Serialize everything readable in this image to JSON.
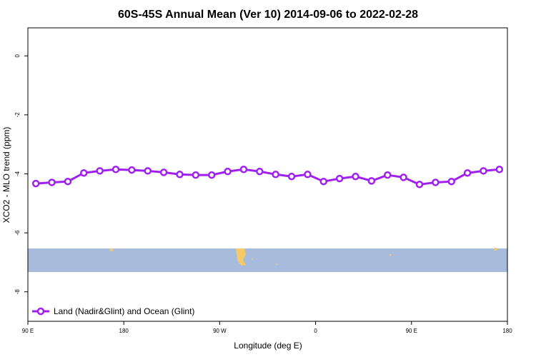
{
  "chart_data": {
    "type": "line",
    "title": "60S-45S Annual Mean (Ver 10)   2014-09-06 to 2022-02-28",
    "xlabel": "Longitude (deg E)",
    "ylabel": "XCO2 - MLO trend (ppm)",
    "xlim": [
      90,
      540
    ],
    "ylim": [
      -9,
      0.95
    ],
    "xticks": [
      {
        "value": 90,
        "label": "90 E"
      },
      180,
      {
        "value": 270,
        "label": "90 W"
      },
      {
        "value": 360,
        "label": "0"
      },
      {
        "value": 450,
        "label": "90 E"
      },
      {
        "value": 540,
        "label": "180"
      }
    ],
    "yticks": [
      0,
      -2,
      -4,
      -6,
      -8
    ],
    "x": [
      97.5,
      112.5,
      127.5,
      142.5,
      157.5,
      172.5,
      187.5,
      202.5,
      217.5,
      232.5,
      247.5,
      262.5,
      277.5,
      292.5,
      307.5,
      322.5,
      337.5,
      352.5,
      367.5,
      382.5,
      397.5,
      412.5,
      427.5,
      442.5,
      457.5,
      472.5,
      487.5,
      502.5,
      517.5,
      532.5
    ],
    "series": [
      {
        "name": "Land (Nadir&Glint) and Ocean (Glint)",
        "color": "#a020f0",
        "values": [
          -4.33,
          -4.29,
          -4.26,
          -3.97,
          -3.9,
          -3.85,
          -3.87,
          -3.9,
          -3.95,
          -4.02,
          -4.04,
          -4.04,
          -3.92,
          -3.85,
          -3.92,
          -4.02,
          -4.09,
          -4.02,
          -4.26,
          -4.16,
          -4.09,
          -4.24,
          -4.04,
          -4.12,
          -4.36,
          -4.29,
          -4.26,
          -3.97,
          -3.9,
          -3.85
        ]
      }
    ],
    "legend": "bottom-left"
  }
}
